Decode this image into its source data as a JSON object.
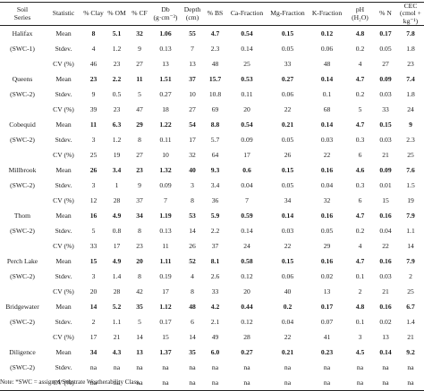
{
  "headers": [
    {
      "line1": "Soil",
      "line2": "Series"
    },
    {
      "line1": "Statistic",
      "line2": ""
    },
    {
      "line1": "% Clay",
      "line2": ""
    },
    {
      "line1": "% OM",
      "line2": ""
    },
    {
      "line1": "% CF",
      "line2": ""
    },
    {
      "line1": "Db",
      "line2": "(g·cm⁻³)"
    },
    {
      "line1": "Depth",
      "line2": "(cm)"
    },
    {
      "line1": "% BS",
      "line2": ""
    },
    {
      "line1": "Ca-Fraction",
      "line2": ""
    },
    {
      "line1": "Mg-Fraction",
      "line2": ""
    },
    {
      "line1": "K-Fraction",
      "line2": ""
    },
    {
      "line1": "pH",
      "line2": "(H₂O)"
    },
    {
      "line1": "% N",
      "line2": ""
    },
    {
      "line1": "CEC",
      "line2": "(cmol + kg⁻¹)"
    }
  ],
  "groups": [
    {
      "series": [
        "Halifax",
        "(SWC-1)",
        ""
      ],
      "rows": [
        {
          "stat": "Mean",
          "values": [
            "8",
            "5.1",
            "32",
            "1.06",
            "55",
            "4.7",
            "0.54",
            "0.15",
            "0.12",
            "4.8",
            "0.17",
            "7.8"
          ]
        },
        {
          "stat": "Stdev.",
          "values": [
            "4",
            "1.2",
            "9",
            "0.13",
            "7",
            "2.3",
            "0.14",
            "0.05",
            "0.06",
            "0.2",
            "0.05",
            "1.8"
          ]
        },
        {
          "stat": "CV (%)",
          "values": [
            "46",
            "23",
            "27",
            "13",
            "13",
            "48",
            "25",
            "33",
            "48",
            "4",
            "27",
            "23"
          ]
        }
      ]
    },
    {
      "series": [
        "Queens",
        "(SWC-2)",
        ""
      ],
      "rows": [
        {
          "stat": "Mean",
          "values": [
            "23",
            "2.2",
            "11",
            "1.51",
            "37",
            "15.7",
            "0.53",
            "0.27",
            "0.14",
            "4.7",
            "0.09",
            "7.4"
          ]
        },
        {
          "stat": "Stdev.",
          "values": [
            "9",
            "0.5",
            "5",
            "0.27",
            "10",
            "10.8",
            "0.11",
            "0.06",
            "0.1",
            "0.2",
            "0.03",
            "1.8"
          ]
        },
        {
          "stat": "CV (%)",
          "values": [
            "39",
            "23",
            "47",
            "18",
            "27",
            "69",
            "20",
            "22",
            "68",
            "5",
            "33",
            "24"
          ]
        }
      ]
    },
    {
      "series": [
        "Cobequid",
        "(SWC-2)",
        ""
      ],
      "rows": [
        {
          "stat": "Mean",
          "values": [
            "11",
            "6.3",
            "29",
            "1.22",
            "54",
            "8.8",
            "0.54",
            "0.21",
            "0.14",
            "4.7",
            "0.15",
            "9"
          ]
        },
        {
          "stat": "Stdev.",
          "values": [
            "3",
            "1.2",
            "8",
            "0.11",
            "17",
            "5.7",
            "0.09",
            "0.05",
            "0.03",
            "0.3",
            "0.03",
            "2.3"
          ]
        },
        {
          "stat": "CV (%)",
          "values": [
            "25",
            "19",
            "27",
            "10",
            "32",
            "64",
            "17",
            "26",
            "22",
            "6",
            "21",
            "25"
          ]
        }
      ]
    },
    {
      "series": [
        "Millbrook",
        "(SWC-2)",
        ""
      ],
      "rows": [
        {
          "stat": "Mean",
          "values": [
            "26",
            "3.4",
            "23",
            "1.32",
            "40",
            "9.3",
            "0.6",
            "0.15",
            "0.16",
            "4.6",
            "0.09",
            "7.6"
          ]
        },
        {
          "stat": "Stdev.",
          "values": [
            "3",
            "1",
            "9",
            "0.09",
            "3",
            "3.4",
            "0.04",
            "0.05",
            "0.04",
            "0.3",
            "0.01",
            "1.5"
          ]
        },
        {
          "stat": "CV (%)",
          "values": [
            "12",
            "28",
            "37",
            "7",
            "8",
            "36",
            "7",
            "34",
            "32",
            "6",
            "15",
            "19"
          ]
        }
      ]
    },
    {
      "series": [
        "Thom",
        "(SWC-2)",
        ""
      ],
      "rows": [
        {
          "stat": "Mean",
          "values": [
            "16",
            "4.9",
            "34",
            "1.19",
            "53",
            "5.9",
            "0.59",
            "0.14",
            "0.16",
            "4.7",
            "0.16",
            "7.9"
          ]
        },
        {
          "stat": "Stdev.",
          "values": [
            "5",
            "0.8",
            "8",
            "0.13",
            "14",
            "2.2",
            "0.14",
            "0.03",
            "0.05",
            "0.2",
            "0.04",
            "1.1"
          ]
        },
        {
          "stat": "CV (%)",
          "values": [
            "33",
            "17",
            "23",
            "11",
            "26",
            "37",
            "24",
            "22",
            "29",
            "4",
            "22",
            "14"
          ]
        }
      ]
    },
    {
      "series": [
        "Perch Lake",
        "(SWC-2)",
        ""
      ],
      "rows": [
        {
          "stat": "Mean",
          "values": [
            "15",
            "4.9",
            "20",
            "1.11",
            "52",
            "8.1",
            "0.58",
            "0.15",
            "0.16",
            "4.7",
            "0.16",
            "7.9"
          ]
        },
        {
          "stat": "Stdev.",
          "values": [
            "3",
            "1.4",
            "8",
            "0.19",
            "4",
            "2.6",
            "0.12",
            "0.06",
            "0.02",
            "0.1",
            "0.03",
            "2"
          ]
        },
        {
          "stat": "CV (%)",
          "values": [
            "20",
            "28",
            "42",
            "17",
            "8",
            "33",
            "20",
            "40",
            "13",
            "2",
            "21",
            "25"
          ]
        }
      ]
    },
    {
      "series": [
        "Bridgewater",
        "(SWC-2)",
        ""
      ],
      "rows": [
        {
          "stat": "Mean",
          "values": [
            "14",
            "5.2",
            "35",
            "1.12",
            "48",
            "4.2",
            "0.44",
            "0.2",
            "0.17",
            "4.8",
            "0.16",
            "6.7"
          ]
        },
        {
          "stat": "Stdev.",
          "values": [
            "2",
            "1.1",
            "5",
            "0.17",
            "6",
            "2.1",
            "0.12",
            "0.04",
            "0.07",
            "0.1",
            "0.02",
            "1.4"
          ]
        },
        {
          "stat": "CV (%)",
          "values": [
            "17",
            "21",
            "14",
            "15",
            "14",
            "49",
            "28",
            "22",
            "41",
            "3",
            "13",
            "21"
          ]
        }
      ]
    },
    {
      "series": [
        "Diligence",
        "(SWC-2)",
        ""
      ],
      "rows": [
        {
          "stat": "Mean",
          "values": [
            "34",
            "4.3",
            "13",
            "1.37",
            "35",
            "6.0",
            "0.27",
            "0.21",
            "0.23",
            "4.5",
            "0.14",
            "9.2"
          ]
        },
        {
          "stat": "Stdev.",
          "values": [
            "na",
            "na",
            "na",
            "na",
            "na",
            "na",
            "na",
            "na",
            "na",
            "na",
            "na",
            "na"
          ]
        },
        {
          "stat": "CV (%)",
          "values": [
            "na",
            "na",
            "na",
            "na",
            "na",
            "na",
            "na",
            "na",
            "na",
            "na",
            "na",
            "na"
          ]
        }
      ]
    }
  ],
  "note": "Note: *SWC = assigned Substrate Weatherability Class."
}
